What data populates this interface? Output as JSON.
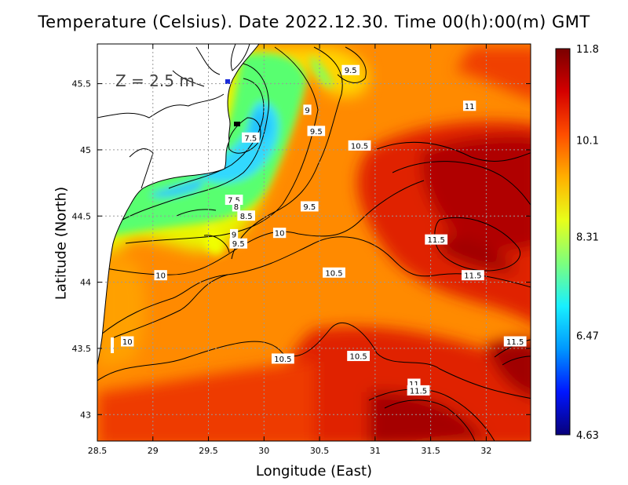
{
  "title": "Temperature (Celsius). Date 2022.12.30. Time 00(h):00(m) GMT",
  "depth_label": "Z = 2.5 m",
  "chart_data": {
    "type": "heatmap",
    "variable": "Temperature (Celsius)",
    "date": "2022.12.30",
    "time": "00(h):00(m) GMT",
    "depth": "Z = 2.5 m",
    "xlabel": "Longitude (East)",
    "ylabel": "Latitude (North)",
    "xlim": [
      28.5,
      32.4
    ],
    "ylim": [
      42.8,
      45.8
    ],
    "xticks": [
      28.5,
      29,
      29.5,
      30,
      30.5,
      31,
      31.5,
      32
    ],
    "xtick_labels": [
      "28.5",
      "29",
      "29.5",
      "30",
      "30.5",
      "31",
      "31.5",
      "32"
    ],
    "yticks": [
      43,
      43.5,
      44,
      44.5,
      45,
      45.5
    ],
    "ytick_labels": [
      "43",
      "43.5",
      "44",
      "44.5",
      "45",
      "45.5"
    ],
    "grid": true,
    "colorbar": {
      "min": 4.63,
      "max": 11.8,
      "ticks": [
        4.63,
        6.47,
        8.31,
        10.1,
        11.8
      ],
      "tick_labels": [
        "4.63",
        "6.47",
        "8.31",
        "10.1",
        "11.8"
      ],
      "colors": [
        "#08007a",
        "#0016ff",
        "#0097ff",
        "#18f0ff",
        "#7dff7d",
        "#e8ff1a",
        "#ffb000",
        "#ff4e00",
        "#d40000",
        "#7a0000"
      ]
    },
    "contour_labels": [
      {
        "text": "9.5",
        "lon": 30.78,
        "lat": 45.6
      },
      {
        "text": "11",
        "lon": 31.85,
        "lat": 45.33
      },
      {
        "text": "9",
        "lon": 30.39,
        "lat": 45.3
      },
      {
        "text": "9.5",
        "lon": 30.47,
        "lat": 45.14
      },
      {
        "text": "7.5",
        "lon": 29.88,
        "lat": 45.09
      },
      {
        "text": "10.5",
        "lon": 30.86,
        "lat": 45.03
      },
      {
        "text": "7.5",
        "lon": 29.73,
        "lat": 44.62
      },
      {
        "text": "8",
        "lon": 29.75,
        "lat": 44.57
      },
      {
        "text": "8.5",
        "lon": 29.84,
        "lat": 44.5
      },
      {
        "text": "9.5",
        "lon": 30.41,
        "lat": 44.57
      },
      {
        "text": "11.5",
        "lon": 31.55,
        "lat": 44.32
      },
      {
        "text": "9",
        "lon": 29.73,
        "lat": 44.36
      },
      {
        "text": "10",
        "lon": 30.14,
        "lat": 44.37
      },
      {
        "text": "9.5",
        "lon": 29.77,
        "lat": 44.29
      },
      {
        "text": "11.5",
        "lon": 31.88,
        "lat": 44.05
      },
      {
        "text": "10.5",
        "lon": 30.63,
        "lat": 44.07
      },
      {
        "text": "10",
        "lon": 29.07,
        "lat": 44.05
      },
      {
        "text": "11.5",
        "lon": 32.26,
        "lat": 43.55
      },
      {
        "text": "10",
        "lon": 28.77,
        "lat": 43.55
      },
      {
        "text": "10.5",
        "lon": 30.17,
        "lat": 43.42
      },
      {
        "text": "10.5",
        "lon": 30.85,
        "lat": 43.44
      },
      {
        "text": "11",
        "lon": 31.35,
        "lat": 43.23
      },
      {
        "text": "11.5",
        "lon": 31.39,
        "lat": 43.18
      }
    ]
  }
}
